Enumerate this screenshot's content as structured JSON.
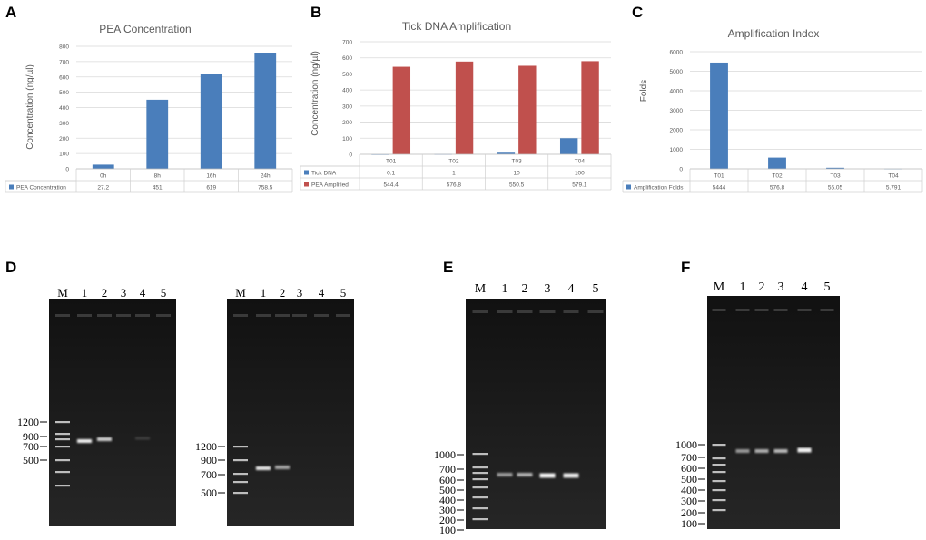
{
  "panels": {
    "a": "A",
    "b": "B",
    "c": "C",
    "d": "D",
    "e": "E",
    "f": "F"
  },
  "chart_data": [
    {
      "type": "bar",
      "title": "PEA Concentration",
      "ylabel": "Concentration (ng/µl)",
      "ylim": [
        0,
        800
      ],
      "yticks": [
        0,
        100,
        200,
        300,
        400,
        500,
        600,
        700,
        800
      ],
      "categories": [
        "0h",
        "8h",
        "16h",
        "24h"
      ],
      "series": [
        {
          "name": "PEA Concentration",
          "color": "#4a7ebb",
          "values": [
            27.2,
            451,
            619,
            758.5
          ],
          "labels": [
            "27.2",
            "451",
            "619",
            "758.5"
          ]
        }
      ]
    },
    {
      "type": "bar",
      "title": "Tick DNA Amplification",
      "ylabel": "Concentration (ng/µl)",
      "ylim": [
        0,
        700
      ],
      "yticks": [
        0,
        100,
        200,
        300,
        400,
        500,
        600,
        700
      ],
      "categories": [
        "T01",
        "T02",
        "T03",
        "T04"
      ],
      "series": [
        {
          "name": "Tick DNA",
          "color": "#4a7ebb",
          "values": [
            0.1,
            1,
            10,
            100
          ],
          "labels": [
            "0.1",
            "1",
            "10",
            "100"
          ]
        },
        {
          "name": "PEA Amplified",
          "color": "#c0504d",
          "values": [
            544.4,
            576.8,
            550.5,
            579.1
          ],
          "labels": [
            "544.4",
            "576.8",
            "550.5",
            "579.1"
          ]
        }
      ]
    },
    {
      "type": "bar",
      "title": "Amplification Index",
      "ylabel": "Folds",
      "ylim": [
        0,
        6000
      ],
      "yticks": [
        0,
        1000,
        2000,
        3000,
        4000,
        5000,
        6000
      ],
      "categories": [
        "T01",
        "T02",
        "T03",
        "T04"
      ],
      "series": [
        {
          "name": "Amplification Folds",
          "color": "#4a7ebb",
          "values": [
            5444,
            576.8,
            55.05,
            5.791
          ],
          "labels": [
            "5444",
            "576.8",
            "55.05",
            "5.791"
          ]
        }
      ]
    }
  ],
  "gels": {
    "d1": {
      "lane_labels": [
        "M",
        "1",
        "2",
        "3",
        "4",
        "5"
      ],
      "markers": [
        "1200",
        "900",
        "700",
        "500"
      ]
    },
    "d2": {
      "lane_labels": [
        "M",
        "1",
        "2",
        "3",
        "4",
        "5"
      ],
      "markers": [
        "1200",
        "900",
        "700",
        "500"
      ]
    },
    "e": {
      "lane_labels": [
        "M",
        "1",
        "2",
        "3",
        "4",
        "5"
      ],
      "markers": [
        "1000",
        "700",
        "600",
        "500",
        "400",
        "300",
        "200",
        "100"
      ]
    },
    "f": {
      "lane_labels": [
        "M",
        "1",
        "2",
        "3",
        "4",
        "5"
      ],
      "markers": [
        "1000",
        "700",
        "600",
        "500",
        "400",
        "300",
        "200",
        "100"
      ]
    }
  }
}
